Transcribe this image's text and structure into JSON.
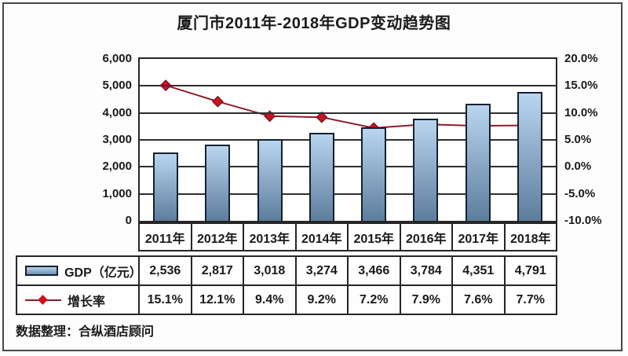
{
  "chart_data": {
    "type": "bar",
    "title": "厦门市2011年-2018年GDP变动趋势图",
    "categories": [
      "2011年",
      "2012年",
      "2013年",
      "2014年",
      "2015年",
      "2016年",
      "2017年",
      "2018年"
    ],
    "series": [
      {
        "name": "GDP（亿元）",
        "type": "bar",
        "axis": "left",
        "values": [
          2536,
          2817,
          3018,
          3274,
          3466,
          3784,
          4351,
          4791
        ]
      },
      {
        "name": "增长率",
        "type": "line",
        "axis": "right",
        "values": [
          15.1,
          12.1,
          9.4,
          9.2,
          7.2,
          7.9,
          7.6,
          7.7
        ]
      }
    ],
    "left_axis": {
      "min": 0,
      "max": 6000,
      "tick_labels": [
        "6,000",
        "5,000",
        "4,000",
        "3,000",
        "2,000",
        "1,000",
        "0"
      ]
    },
    "right_axis": {
      "min": -10,
      "max": 20,
      "tick_labels": [
        "20.0%",
        "15.0%",
        "10.0%",
        "5.0%",
        "0.0%",
        "-5.0%",
        "-10.0%"
      ]
    },
    "grid": true,
    "legend_position": "table-bottom"
  },
  "table": {
    "rows": [
      {
        "label": "GDP（亿元）",
        "legend": "bar-swatch",
        "values": [
          "2,536",
          "2,817",
          "3,018",
          "3,274",
          "3,466",
          "3,784",
          "4,351",
          "4,791"
        ]
      },
      {
        "label": "增长率",
        "legend": "line-marker",
        "values": [
          "15.1%",
          "12.1%",
          "9.4%",
          "9.2%",
          "7.2%",
          "7.9%",
          "7.6%",
          "7.7%"
        ]
      }
    ]
  },
  "footer": {
    "source_label": "数据整理：合纵酒店顾问"
  },
  "colors": {
    "bar_gradient_top": "#b9d5f0",
    "bar_gradient_bottom": "#5d7d9d",
    "bar_border": "#16202c",
    "line": "#8e1c2a",
    "marker_fill": "#cc1220",
    "marker_stroke": "#5f0e18",
    "grid": "#2e2e2e",
    "text": "#1a1a1a"
  }
}
